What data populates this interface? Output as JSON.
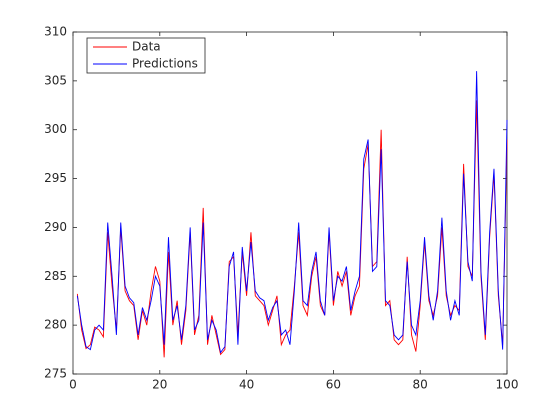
{
  "chart_data": {
    "type": "line",
    "x": [
      1,
      2,
      3,
      4,
      5,
      6,
      7,
      8,
      9,
      10,
      11,
      12,
      13,
      14,
      15,
      16,
      17,
      18,
      19,
      20,
      21,
      22,
      23,
      24,
      25,
      26,
      27,
      28,
      29,
      30,
      31,
      32,
      33,
      34,
      35,
      36,
      37,
      38,
      39,
      40,
      41,
      42,
      43,
      44,
      45,
      46,
      47,
      48,
      49,
      50,
      51,
      52,
      53,
      54,
      55,
      56,
      57,
      58,
      59,
      60,
      61,
      62,
      63,
      64,
      65,
      66,
      67,
      68,
      69,
      70,
      71,
      72,
      73,
      74,
      75,
      76,
      77,
      78,
      79,
      80,
      81,
      82,
      83,
      84,
      85,
      86,
      87,
      88,
      89,
      90,
      91,
      92,
      93,
      94,
      95,
      96,
      97,
      98,
      99,
      100
    ],
    "series": [
      {
        "name": "Data",
        "color": "#ff0000",
        "values": [
          283.2,
          279.5,
          277.6,
          278,
          279.8,
          279.5,
          278.8,
          289.5,
          284,
          279.5,
          290,
          283.5,
          282.5,
          282,
          278.5,
          281.5,
          280,
          283.5,
          286,
          284.5,
          276.7,
          287.5,
          280,
          282.5,
          278,
          281.5,
          289.5,
          279,
          281,
          292,
          278,
          281,
          279,
          277,
          277.5,
          286.5,
          287,
          279,
          287.5,
          283,
          289.5,
          283,
          282.5,
          282,
          280,
          281.5,
          283,
          278,
          279,
          279.5,
          284,
          289.5,
          282,
          281,
          285,
          287,
          282,
          281,
          289.5,
          282,
          285.5,
          284,
          285.5,
          281,
          283,
          284,
          296,
          298.5,
          286,
          286.5,
          300,
          282,
          282.5,
          278.5,
          278,
          278.5,
          287,
          279,
          277.3,
          282,
          288.5,
          282.5,
          281,
          283,
          290,
          283,
          281,
          282,
          281.5,
          296.5,
          286,
          285,
          303,
          285,
          278.5,
          289,
          295.5,
          283,
          278,
          299
        ]
      },
      {
        "name": "Predictions",
        "color": "#0000ff",
        "values": [
          283,
          280,
          277.8,
          277.5,
          279.5,
          280,
          279.5,
          290.5,
          285,
          279,
          290.5,
          284,
          282.8,
          282.3,
          279,
          281.8,
          280.5,
          282.5,
          285,
          284,
          278,
          289,
          280.5,
          282,
          278.5,
          282,
          290,
          279.5,
          280.5,
          290.5,
          278.5,
          280.5,
          279.5,
          277.2,
          277.8,
          286,
          287.5,
          278,
          288,
          283.5,
          288.5,
          283.5,
          282.8,
          282.5,
          280.5,
          281.8,
          282.5,
          279,
          279.5,
          278,
          283.5,
          290.5,
          282.5,
          282,
          285.5,
          287.5,
          282.5,
          281,
          290,
          282.5,
          285,
          284.5,
          286,
          281.5,
          283.5,
          285,
          297,
          299,
          285.5,
          286,
          298,
          282.5,
          282,
          279,
          278.5,
          279,
          286.5,
          280,
          279,
          282.5,
          289,
          283,
          280.5,
          283.5,
          291,
          283.5,
          280.5,
          282.5,
          281,
          295.5,
          286.5,
          284.5,
          306,
          285.5,
          279,
          289.5,
          296,
          283.5,
          277.5,
          301
        ]
      }
    ],
    "xlim": [
      0,
      100
    ],
    "xticks": [
      0,
      20,
      40,
      60,
      80,
      100
    ],
    "ylim": [
      275,
      310
    ],
    "yticks": [
      275,
      280,
      285,
      290,
      295,
      300,
      305,
      310
    ],
    "legend": "top-left"
  }
}
